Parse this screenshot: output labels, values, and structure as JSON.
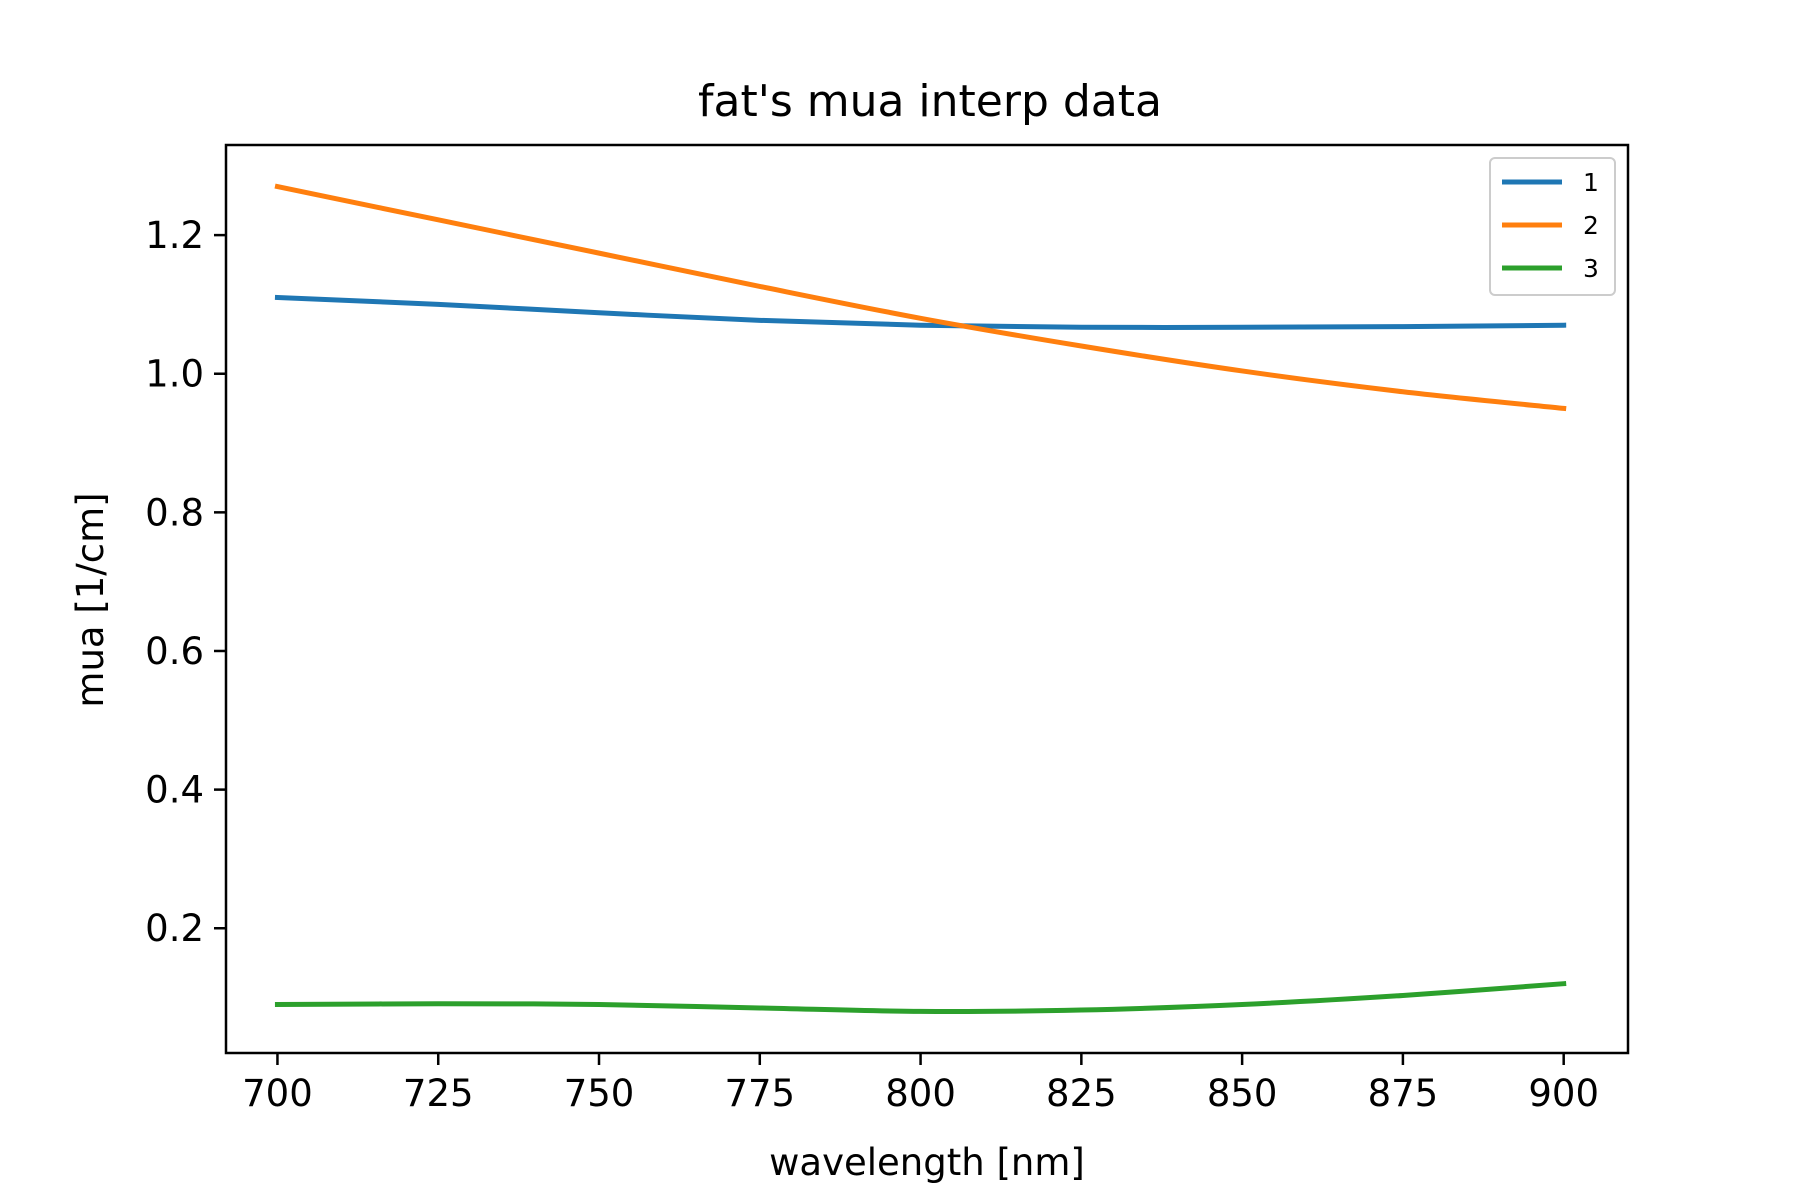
{
  "chart_data": {
    "type": "line",
    "title": "fat's mua interp data",
    "xlabel": "wavelength [nm]",
    "ylabel": "mua [1/cm]",
    "xlim": [
      692,
      910
    ],
    "ylim": [
      0.02,
      1.33
    ],
    "xticks": [
      700,
      725,
      750,
      775,
      800,
      825,
      850,
      875,
      900
    ],
    "yticks": [
      0.2,
      0.4,
      0.6,
      0.8,
      1.0,
      1.2
    ],
    "ytick_labels": [
      "0.2",
      "0.4",
      "0.6",
      "0.8",
      "1.0",
      "1.2"
    ],
    "grid": false,
    "legend": "top-right",
    "x": [
      700,
      725,
      750,
      775,
      800,
      825,
      850,
      875,
      900
    ],
    "series": [
      {
        "name": "1",
        "color": "#1f77b4",
        "values": [
          1.11,
          1.1,
          1.088,
          1.077,
          1.07,
          1.067,
          1.067,
          1.068,
          1.07
        ]
      },
      {
        "name": "2",
        "color": "#ff7f0e",
        "values": [
          1.27,
          1.222,
          1.174,
          1.126,
          1.08,
          1.04,
          1.004,
          0.974,
          0.95
        ]
      },
      {
        "name": "3",
        "color": "#2ca02c",
        "values": [
          0.09,
          0.091,
          0.09,
          0.085,
          0.08,
          0.082,
          0.09,
          0.103,
          0.12
        ]
      }
    ]
  }
}
